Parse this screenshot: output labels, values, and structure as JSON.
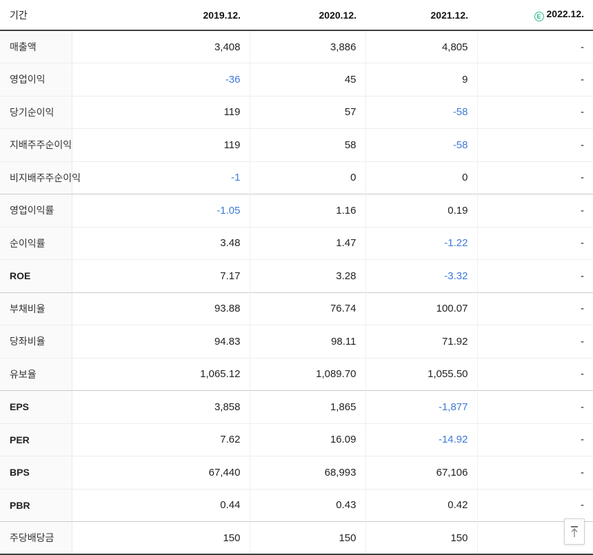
{
  "colors": {
    "negative_value": "#3d79d8",
    "estimate_icon": "#2ab98f",
    "header_border": "#3e3e3e"
  },
  "table": {
    "period_header": "기간",
    "estimate_icon_letter": "E",
    "columns": [
      {
        "label": "2019.12.",
        "estimate": false
      },
      {
        "label": "2020.12.",
        "estimate": false
      },
      {
        "label": "2021.12.",
        "estimate": false
      },
      {
        "label": "2022.12.",
        "estimate": true
      }
    ],
    "rows": [
      {
        "label": "매출액",
        "values": [
          "3,408",
          "3,886",
          "4,805",
          "-"
        ],
        "group_start": false
      },
      {
        "label": "영업이익",
        "values": [
          "-36",
          "45",
          "9",
          "-"
        ],
        "group_start": false
      },
      {
        "label": "당기순이익",
        "values": [
          "119",
          "57",
          "-58",
          "-"
        ],
        "group_start": false
      },
      {
        "label": "지배주주순이익",
        "values": [
          "119",
          "58",
          "-58",
          "-"
        ],
        "group_start": false
      },
      {
        "label": "비지배주주순이익",
        "values": [
          "-1",
          "0",
          "0",
          "-"
        ],
        "group_start": false
      },
      {
        "label": "영업이익률",
        "values": [
          "-1.05",
          "1.16",
          "0.19",
          "-"
        ],
        "group_start": true
      },
      {
        "label": "순이익률",
        "values": [
          "3.48",
          "1.47",
          "-1.22",
          "-"
        ],
        "group_start": false
      },
      {
        "label": "ROE",
        "values": [
          "7.17",
          "3.28",
          "-3.32",
          "-"
        ],
        "group_start": false
      },
      {
        "label": "부채비율",
        "values": [
          "93.88",
          "76.74",
          "100.07",
          "-"
        ],
        "group_start": true
      },
      {
        "label": "당좌비율",
        "values": [
          "94.83",
          "98.11",
          "71.92",
          "-"
        ],
        "group_start": false
      },
      {
        "label": "유보율",
        "values": [
          "1,065.12",
          "1,089.70",
          "1,055.50",
          "-"
        ],
        "group_start": false
      },
      {
        "label": "EPS",
        "values": [
          "3,858",
          "1,865",
          "-1,877",
          "-"
        ],
        "group_start": true
      },
      {
        "label": "PER",
        "values": [
          "7.62",
          "16.09",
          "-14.92",
          "-"
        ],
        "group_start": false
      },
      {
        "label": "BPS",
        "values": [
          "67,440",
          "68,993",
          "67,106",
          "-"
        ],
        "group_start": false
      },
      {
        "label": "PBR",
        "values": [
          "0.44",
          "0.43",
          "0.42",
          "-"
        ],
        "group_start": false
      },
      {
        "label": "주당배당금",
        "values": [
          "150",
          "150",
          "150",
          "-"
        ],
        "group_start": true
      }
    ]
  },
  "scroll_top_button": {
    "icon": "arrow-up-to-bar"
  }
}
